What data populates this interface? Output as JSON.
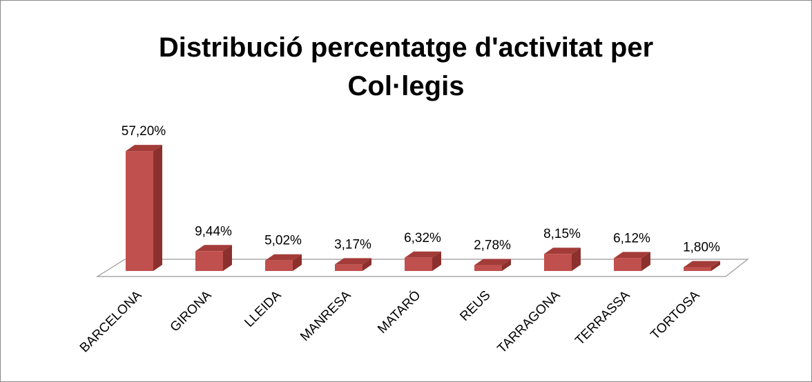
{
  "chart_data": {
    "type": "bar3d",
    "title": "Distribució percentatge d'activitat per Col·legis",
    "categories": [
      "BARCELONA",
      "GIRONA",
      "LLEIDA",
      "MANRESA",
      "MATARÓ",
      "REUS",
      "TARRAGONA",
      "TERRASSA",
      "TORTOSA"
    ],
    "values": [
      57.2,
      9.44,
      5.02,
      3.17,
      6.32,
      2.78,
      8.15,
      6.12,
      1.8
    ],
    "value_labels": [
      "57,20%",
      "9,44%",
      "5,02%",
      "3,17%",
      "6,32%",
      "2,78%",
      "8,15%",
      "6,12%",
      "1,80%"
    ],
    "color": "#c0504d"
  }
}
